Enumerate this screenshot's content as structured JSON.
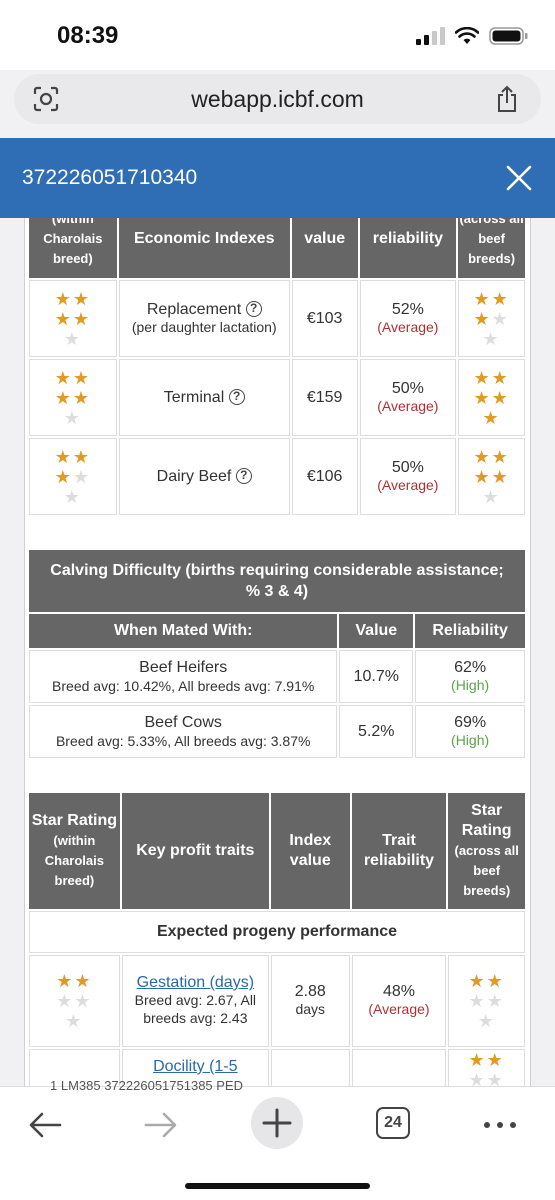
{
  "status_bar": {
    "time": "08:39"
  },
  "browser": {
    "url": "webapp.icbf.com",
    "tab_count": "24"
  },
  "modal": {
    "animal_id": "372226051710340"
  },
  "economic_table": {
    "headers": {
      "star_within": "(within Charolais breed)",
      "indexes": "Economic Indexes",
      "value": "value",
      "reliability": "reliability",
      "star_across": "(across all beef breeds)"
    },
    "rows": [
      {
        "name": "Replacement",
        "sub": "(per daughter lactation)",
        "value": "€103",
        "rel": "52%",
        "rel_label": "(Average)",
        "stars_within": 4,
        "stars_across": 3
      },
      {
        "name": "Terminal",
        "sub": "",
        "value": "€159",
        "rel": "50%",
        "rel_label": "(Average)",
        "stars_within": 4,
        "stars_across": 5
      },
      {
        "name": "Dairy Beef",
        "sub": "",
        "value": "€106",
        "rel": "50%",
        "rel_label": "(Average)",
        "stars_within": 3,
        "stars_across": 4
      }
    ]
  },
  "calving_table": {
    "title": "Calving Difficulty (births requiring considerable assistance; % 3 & 4)",
    "headers": {
      "mated": "When Mated With:",
      "value": "Value",
      "reliability": "Reliability"
    },
    "rows": [
      {
        "name": "Beef Heifers",
        "sub": "Breed avg: 10.42%, All breeds avg: 7.91%",
        "value": "10.7%",
        "rel": "62%",
        "rel_label": "(High)"
      },
      {
        "name": "Beef Cows",
        "sub": "Breed avg: 5.33%, All breeds avg: 3.87%",
        "value": "5.2%",
        "rel": "69%",
        "rel_label": "(High)"
      }
    ]
  },
  "profit_table": {
    "headers": {
      "star_within_title": "Star Rating",
      "star_within_sub": "(within Charolais breed)",
      "traits": "Key profit traits",
      "index": "Index value",
      "reliability": "Trait reliability",
      "star_across_title": "Star Rating",
      "star_across_sub": "(across all beef breeds)"
    },
    "section": "Expected progeny performance",
    "rows": [
      {
        "name": "Gestation (days)",
        "sub": "Breed avg: 2.67, All breeds avg: 2.43",
        "value": "2.88",
        "unit": "days",
        "rel": "48%",
        "rel_label": "(Average)",
        "stars_within": 2,
        "stars_across": 2
      },
      {
        "name": "Docility (1-5",
        "sub": "",
        "value": "",
        "unit": "",
        "rel": "",
        "rel_label": "",
        "stars_within": 0,
        "stars_across": 2
      }
    ]
  },
  "peek_text": "1   LM385   372226051751385   PED"
}
